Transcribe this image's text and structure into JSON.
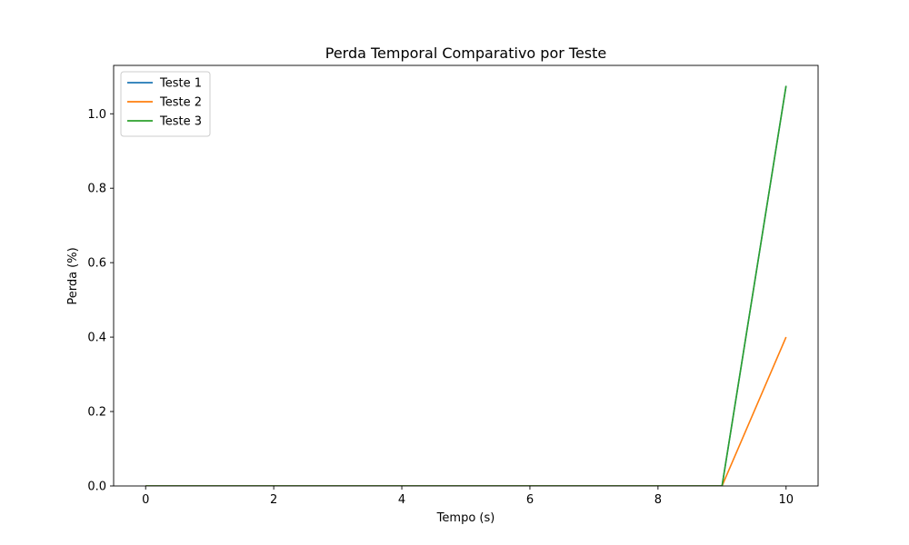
{
  "chart_data": {
    "type": "line",
    "title": "Perda Temporal Comparativo por Teste",
    "xlabel": "Tempo (s)",
    "ylabel": "Perda (%)",
    "x": [
      0,
      1,
      2,
      3,
      4,
      5,
      6,
      7,
      8,
      9,
      10
    ],
    "xlim": [
      -0.5,
      10.5
    ],
    "ylim": [
      0,
      1.13
    ],
    "xticks": [
      0,
      2,
      4,
      6,
      8,
      10
    ],
    "xtick_labels": [
      "0",
      "2",
      "4",
      "6",
      "8",
      "10"
    ],
    "yticks": [
      0.0,
      0.2,
      0.4,
      0.6,
      0.8,
      1.0
    ],
    "ytick_labels": [
      "0.0",
      "0.2",
      "0.4",
      "0.6",
      "0.8",
      "1.0"
    ],
    "grid": false,
    "legend_position": "top-left",
    "series": [
      {
        "name": "Teste 1",
        "color": "#1f77b4",
        "values": [
          0,
          0,
          0,
          0,
          0,
          0,
          0,
          0,
          0,
          0,
          1.075
        ]
      },
      {
        "name": "Teste 2",
        "color": "#ff7f0e",
        "values": [
          0,
          0,
          0,
          0,
          0,
          0,
          0,
          0,
          0,
          0,
          0.4
        ]
      },
      {
        "name": "Teste 3",
        "color": "#2ca02c",
        "values": [
          0,
          0,
          0,
          0,
          0,
          0,
          0,
          0,
          0,
          0,
          1.075
        ]
      }
    ]
  }
}
